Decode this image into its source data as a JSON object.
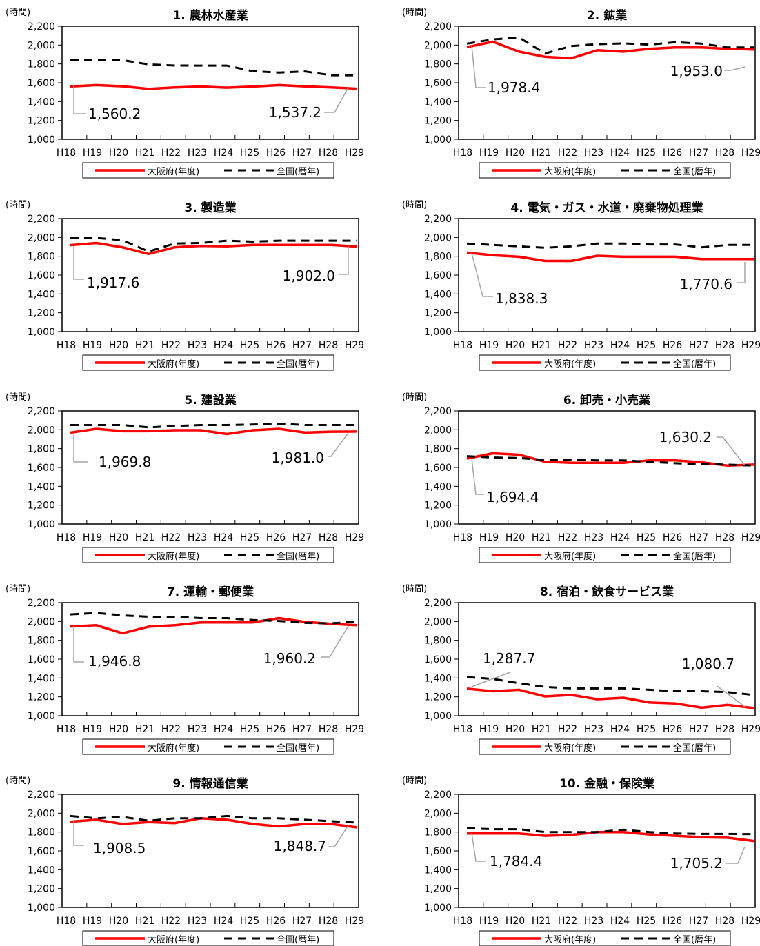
{
  "legend": {
    "osaka": "大阪府(年度)",
    "national": "全国(暦年)"
  },
  "colors": {
    "osaka": "#ff0000",
    "national": "#000000",
    "callout": "#a6a6a6"
  },
  "chart_data": [
    {
      "type": "line",
      "title": "1. 農林水産業",
      "unit": "(時間)",
      "categories": [
        "H18",
        "H19",
        "H20",
        "H21",
        "H22",
        "H23",
        "H24",
        "H25",
        "H26",
        "H27",
        "H28",
        "H29"
      ],
      "ylim": [
        1000,
        2200
      ],
      "yticks": [
        "1,000",
        "1,200",
        "1,400",
        "1,600",
        "1,800",
        "2,000",
        "2,200"
      ],
      "series": [
        {
          "name": "大阪府(年度)",
          "values": [
            1560.2,
            1575,
            1563,
            1535,
            1550,
            1560,
            1548,
            1560,
            1575,
            1562,
            1550,
            1537.2
          ]
        },
        {
          "name": "全国(暦年)",
          "values": [
            1838,
            1840,
            1840,
            1795,
            1783,
            1782,
            1782,
            1722,
            1708,
            1720,
            1680,
            1679
          ]
        }
      ],
      "annotations": [
        "1,560.2",
        "1,537.2"
      ]
    },
    {
      "type": "line",
      "title": "2. 鉱業",
      "unit": "(時間)",
      "categories": [
        "H18",
        "H19",
        "H20",
        "H21",
        "H22",
        "H23",
        "H24",
        "H25",
        "H26",
        "H27",
        "H28",
        "H29"
      ],
      "ylim": [
        1000,
        2200
      ],
      "yticks": [
        "1,000",
        "1,200",
        "1,400",
        "1,600",
        "1,800",
        "2,000",
        "2,200"
      ],
      "series": [
        {
          "name": "大阪府(年度)",
          "values": [
            1978.4,
            2035,
            1930,
            1875,
            1860,
            1945,
            1930,
            1960,
            1975,
            1975,
            1960,
            1953.0
          ]
        },
        {
          "name": "全国(暦年)",
          "values": [
            2015,
            2060,
            2080,
            1910,
            1990,
            2010,
            2018,
            2005,
            2030,
            2015,
            1975,
            1975
          ]
        }
      ],
      "annotations": [
        "1,978.4",
        "1,953.0"
      ]
    },
    {
      "type": "line",
      "title": "3. 製造業",
      "unit": "(時間)",
      "categories": [
        "H18",
        "H19",
        "H20",
        "H21",
        "H22",
        "H23",
        "H24",
        "H25",
        "H26",
        "H27",
        "H28",
        "H29"
      ],
      "ylim": [
        1000,
        2200
      ],
      "yticks": [
        "1,000",
        "1,200",
        "1,400",
        "1,600",
        "1,800",
        "2,000",
        "2,200"
      ],
      "series": [
        {
          "name": "大阪府(年度)",
          "values": [
            1917.6,
            1940,
            1895,
            1825,
            1895,
            1910,
            1905,
            1920,
            1920,
            1920,
            1920,
            1902.0
          ]
        },
        {
          "name": "全国(暦年)",
          "values": [
            1995,
            1995,
            1970,
            1850,
            1935,
            1940,
            1965,
            1955,
            1965,
            1965,
            1965,
            1965
          ]
        }
      ],
      "annotations": [
        "1,917.6",
        "1,902.0"
      ]
    },
    {
      "type": "line",
      "title": "4. 電気・ガス・水道・廃棄物処理業",
      "unit": "(時間)",
      "categories": [
        "H18",
        "H19",
        "H20",
        "H21",
        "H22",
        "H23",
        "H24",
        "H25",
        "H26",
        "H27",
        "H28",
        "H29"
      ],
      "ylim": [
        1000,
        2200
      ],
      "yticks": [
        "1,000",
        "1,200",
        "1,400",
        "1,600",
        "1,800",
        "2,000",
        "2,200"
      ],
      "series": [
        {
          "name": "大阪府(年度)",
          "values": [
            1838.3,
            1810,
            1795,
            1750,
            1750,
            1805,
            1795,
            1795,
            1795,
            1770,
            1770,
            1770.6
          ]
        },
        {
          "name": "全国(暦年)",
          "values": [
            1935,
            1920,
            1905,
            1890,
            1905,
            1935,
            1935,
            1925,
            1925,
            1895,
            1920,
            1920
          ]
        }
      ],
      "annotations": [
        "1,838.3",
        "1,770.6"
      ]
    },
    {
      "type": "line",
      "title": "5. 建設業",
      "unit": "(時間)",
      "categories": [
        "H18",
        "H19",
        "H20",
        "H21",
        "H22",
        "H23",
        "H24",
        "H25",
        "H26",
        "H27",
        "H28",
        "H29"
      ],
      "ylim": [
        1000,
        2200
      ],
      "yticks": [
        "1,000",
        "1,200",
        "1,400",
        "1,600",
        "1,800",
        "2,000",
        "2,200"
      ],
      "series": [
        {
          "name": "大阪府(年度)",
          "values": [
            1969.8,
            2010,
            1985,
            1985,
            1995,
            1995,
            1955,
            1995,
            2010,
            1970,
            1980,
            1981.0
          ]
        },
        {
          "name": "全国(暦年)",
          "values": [
            2050,
            2050,
            2050,
            2025,
            2040,
            2050,
            2050,
            2055,
            2065,
            2050,
            2050,
            2050
          ]
        }
      ],
      "annotations": [
        "1,969.8",
        "1,981.0"
      ]
    },
    {
      "type": "line",
      "title": "6. 卸売・小売業",
      "unit": "(時間)",
      "categories": [
        "H18",
        "H19",
        "H20",
        "H21",
        "H22",
        "H23",
        "H24",
        "H25",
        "H26",
        "H27",
        "H28",
        "H29"
      ],
      "ylim": [
        1000,
        2200
      ],
      "yticks": [
        "1,000",
        "1,200",
        "1,400",
        "1,600",
        "1,800",
        "2,000",
        "2,200"
      ],
      "series": [
        {
          "name": "大阪府(年度)",
          "values": [
            1694.4,
            1750,
            1735,
            1660,
            1650,
            1650,
            1650,
            1675,
            1675,
            1655,
            1620,
            1630.2
          ]
        },
        {
          "name": "全国(暦年)",
          "values": [
            1720,
            1705,
            1700,
            1680,
            1685,
            1675,
            1675,
            1660,
            1645,
            1635,
            1630,
            1620
          ]
        }
      ],
      "annotations": [
        "1,694.4",
        "1,630.2"
      ]
    },
    {
      "type": "line",
      "title": "7. 運輸・郵便業",
      "unit": "(時間)",
      "categories": [
        "H18",
        "H19",
        "H20",
        "H21",
        "H22",
        "H23",
        "H24",
        "H25",
        "H26",
        "H27",
        "H28",
        "H29"
      ],
      "ylim": [
        1000,
        2200
      ],
      "yticks": [
        "1,000",
        "1,200",
        "1,400",
        "1,600",
        "1,800",
        "2,000",
        "2,200"
      ],
      "series": [
        {
          "name": "大阪府(年度)",
          "values": [
            1946.8,
            1960,
            1875,
            1945,
            1960,
            1990,
            1990,
            1990,
            2035,
            1995,
            1975,
            1960.2
          ]
        },
        {
          "name": "全国(暦年)",
          "values": [
            2075,
            2090,
            2065,
            2050,
            2050,
            2035,
            2035,
            2015,
            2005,
            1985,
            1980,
            2000
          ]
        }
      ],
      "annotations": [
        "1,946.8",
        "1,960.2"
      ]
    },
    {
      "type": "line",
      "title": "8. 宿泊・飲食サービス業",
      "unit": "(時間)",
      "categories": [
        "H18",
        "H19",
        "H20",
        "H21",
        "H22",
        "H23",
        "H24",
        "H25",
        "H26",
        "H27",
        "H28",
        "H29"
      ],
      "ylim": [
        1000,
        2200
      ],
      "yticks": [
        "1,000",
        "1,200",
        "1,400",
        "1,600",
        "1,800",
        "2,000",
        "2,200"
      ],
      "series": [
        {
          "name": "大阪府(年度)",
          "values": [
            1287.7,
            1260,
            1275,
            1205,
            1220,
            1175,
            1190,
            1140,
            1130,
            1085,
            1115,
            1080.7
          ]
        },
        {
          "name": "全国(暦年)",
          "values": [
            1410,
            1390,
            1345,
            1305,
            1290,
            1290,
            1290,
            1275,
            1260,
            1260,
            1250,
            1220
          ]
        }
      ],
      "annotations": [
        "1,287.7",
        "1,080.7"
      ]
    },
    {
      "type": "line",
      "title": "9. 情報通信業",
      "unit": "(時間)",
      "categories": [
        "H18",
        "H19",
        "H20",
        "H21",
        "H22",
        "H23",
        "H24",
        "H25",
        "H26",
        "H27",
        "H28",
        "H29"
      ],
      "ylim": [
        1000,
        2200
      ],
      "yticks": [
        "1,000",
        "1,200",
        "1,400",
        "1,600",
        "1,800",
        "2,000",
        "2,200"
      ],
      "series": [
        {
          "name": "大阪府(年度)",
          "values": [
            1908.5,
            1930,
            1885,
            1905,
            1895,
            1945,
            1930,
            1885,
            1860,
            1885,
            1885,
            1848.7
          ]
        },
        {
          "name": "全国(暦年)",
          "values": [
            1970,
            1945,
            1960,
            1920,
            1945,
            1945,
            1970,
            1945,
            1945,
            1930,
            1915,
            1900
          ]
        }
      ],
      "annotations": [
        "1,908.5",
        "1,848.7"
      ]
    },
    {
      "type": "line",
      "title": "10. 金融・保険業",
      "unit": "(時間)",
      "categories": [
        "H18",
        "H19",
        "H20",
        "H21",
        "H22",
        "H23",
        "H24",
        "H25",
        "H26",
        "H27",
        "H28",
        "H29"
      ],
      "ylim": [
        1000,
        2200
      ],
      "yticks": [
        "1,000",
        "1,200",
        "1,400",
        "1,600",
        "1,800",
        "2,000",
        "2,200"
      ],
      "series": [
        {
          "name": "大阪府(年度)",
          "values": [
            1784.4,
            1785,
            1785,
            1760,
            1770,
            1800,
            1800,
            1775,
            1760,
            1745,
            1740,
            1705.2
          ]
        },
        {
          "name": "全国(暦年)",
          "values": [
            1840,
            1830,
            1830,
            1800,
            1800,
            1800,
            1825,
            1800,
            1785,
            1780,
            1780,
            1778
          ]
        }
      ],
      "annotations": [
        "1,784.4",
        "1,705.2"
      ]
    }
  ]
}
